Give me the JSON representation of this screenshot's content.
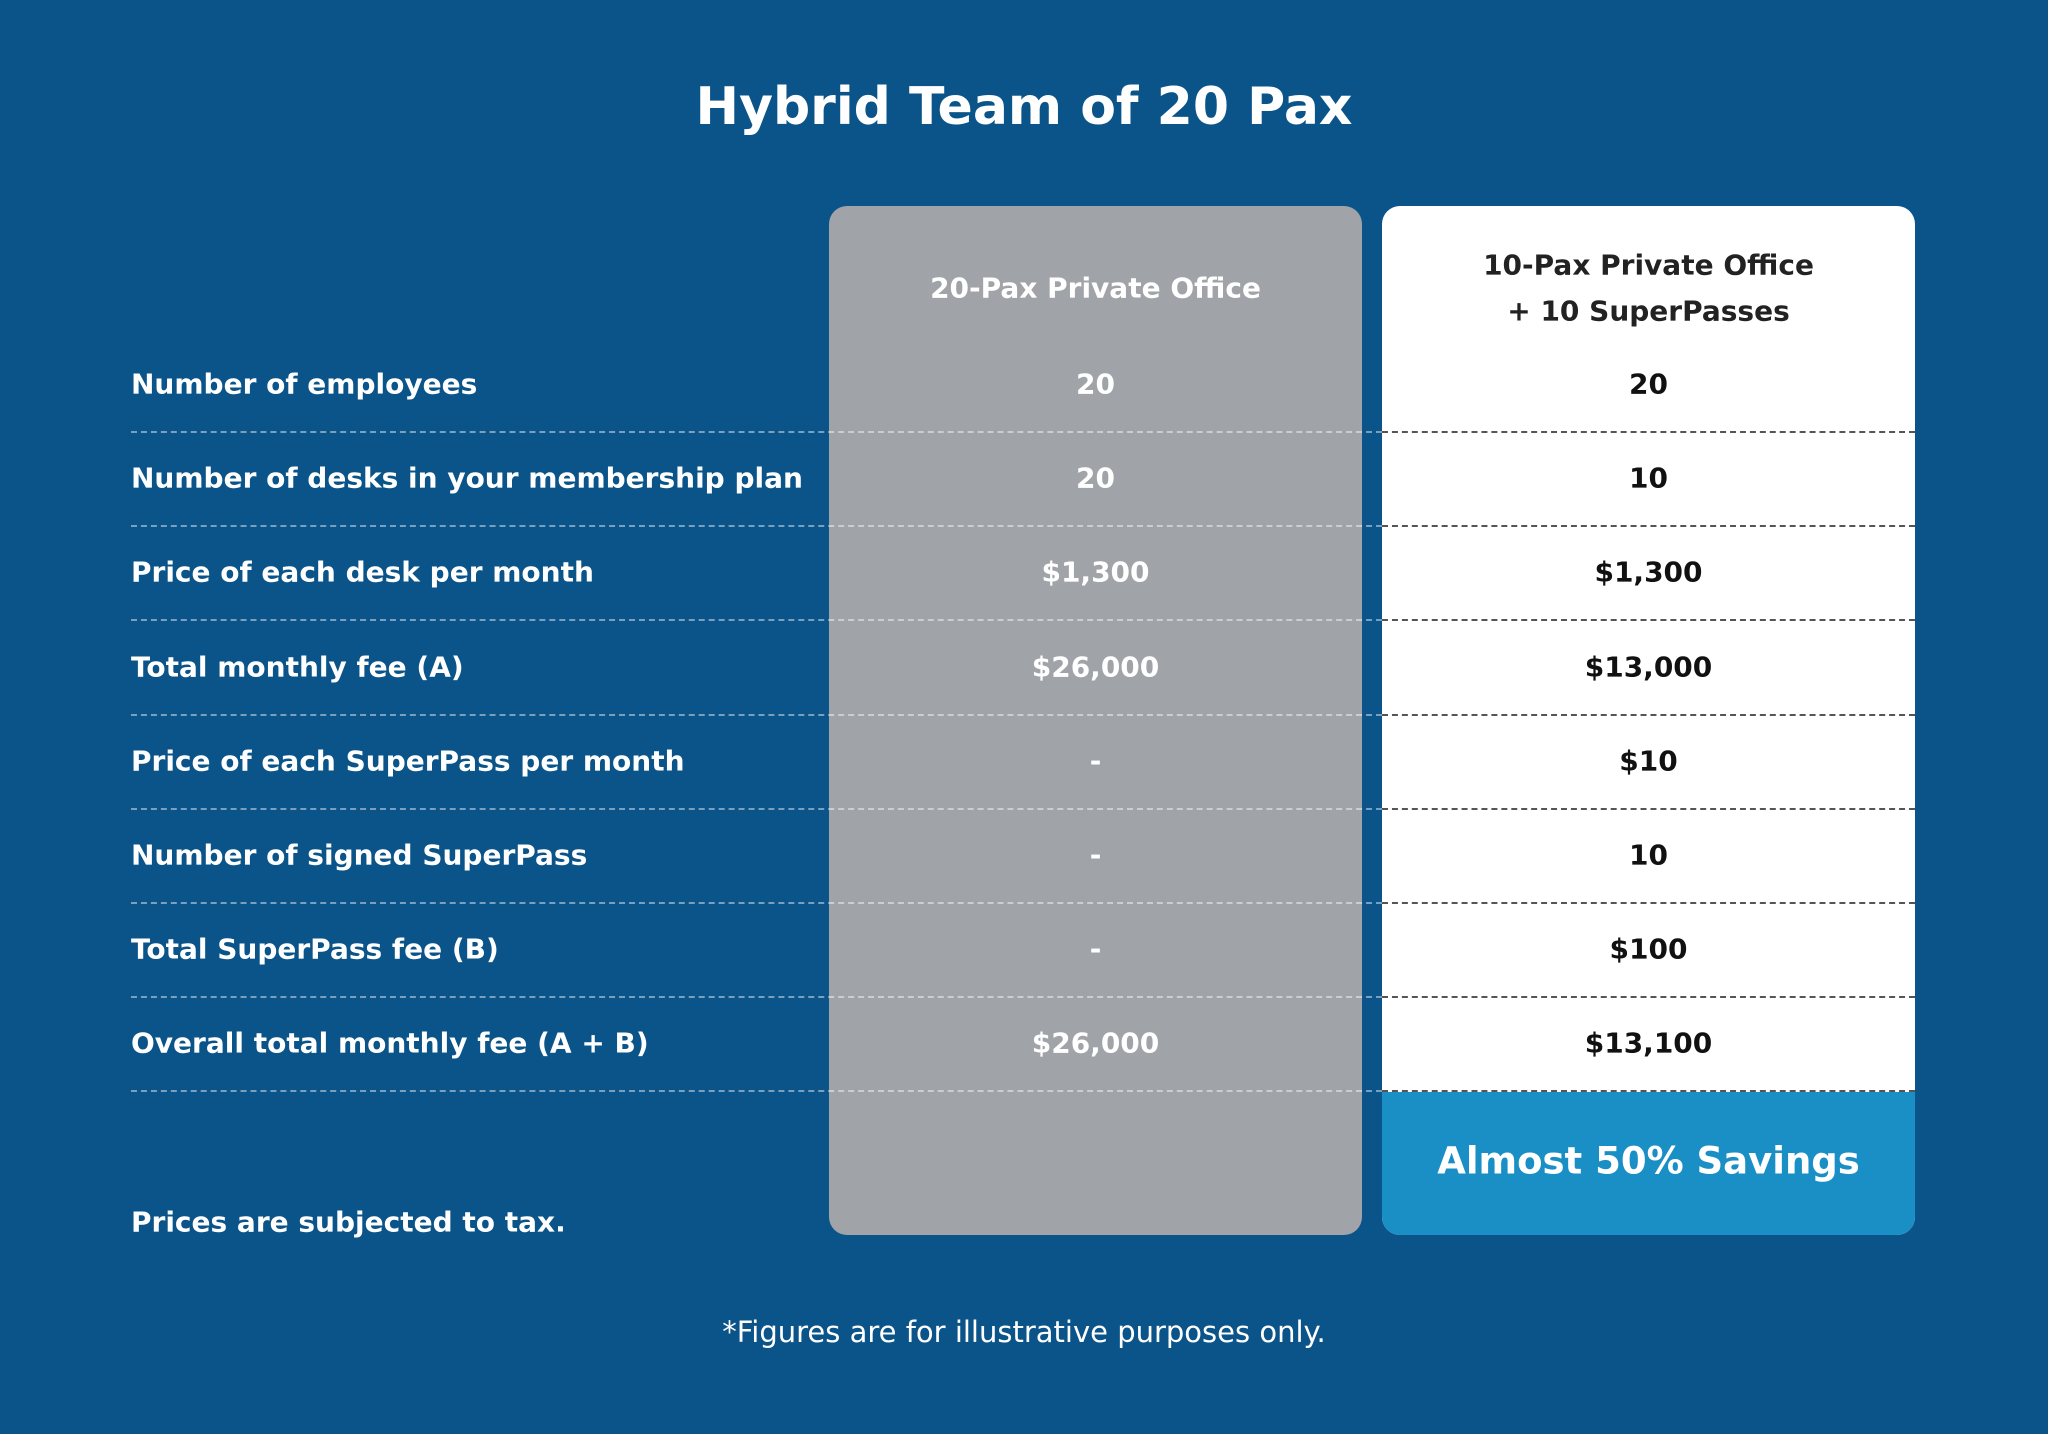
{
  "header": {
    "title": "Hybrid Team of 20 Pax"
  },
  "table": {
    "columns": [
      {
        "lines": [
          "20-Pax Private Office"
        ]
      },
      {
        "lines": [
          "10-Pax Private Office",
          "+ 10 SuperPasses"
        ]
      }
    ],
    "rows": [
      {
        "label": "Number of employees",
        "values": [
          "20",
          "20"
        ]
      },
      {
        "label": "Number of desks in your membership plan",
        "values": [
          "20",
          "10"
        ]
      },
      {
        "label": "Price of each desk per month",
        "values": [
          "$1,300",
          "$1,300"
        ]
      },
      {
        "label": "Total monthly fee (A)",
        "values": [
          "$26,000",
          "$13,000"
        ]
      },
      {
        "label": "Price of each SuperPass per month",
        "values": [
          "-",
          "$10"
        ]
      },
      {
        "label": "Number of signed SuperPass",
        "values": [
          "-",
          "10"
        ]
      },
      {
        "label": "Total SuperPass fee (B)",
        "values": [
          "-",
          "$100"
        ]
      },
      {
        "label": "Overall total monthly fee (A + B)",
        "values": [
          "$26,000",
          "$13,100"
        ]
      }
    ],
    "highlight": "Almost 50% Savings"
  },
  "notes": {
    "tax": "Prices are subjected to tax.",
    "footer": "*Figures are for illustrative purposes only."
  }
}
